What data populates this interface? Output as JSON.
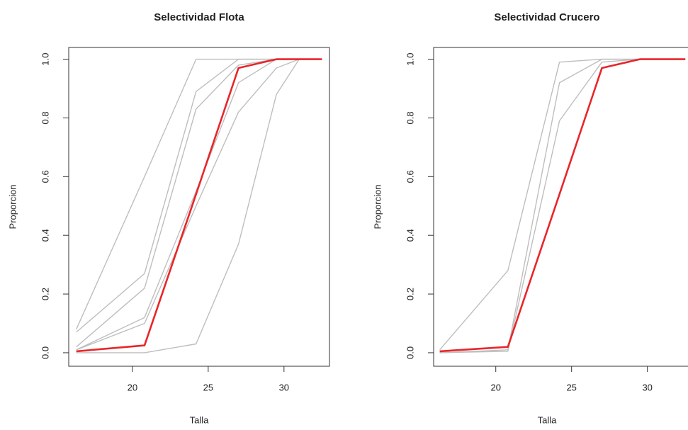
{
  "chart_data": [
    {
      "type": "line",
      "title": "Selectividad Flota",
      "x_label": "Talla",
      "y_label": "Proporcion",
      "x": [
        16.3,
        20.8,
        24.2,
        27,
        29.5,
        31,
        32.5
      ],
      "series": [
        {
          "color": "#bebebe",
          "values": [
            0.08,
            0.6,
            1.0,
            1.0,
            1.0,
            1.0,
            1.0
          ]
        },
        {
          "color": "#bebebe",
          "values": [
            0.07,
            0.27,
            0.89,
            1.0,
            1.0,
            1.0,
            1.0
          ]
        },
        {
          "color": "#bebebe",
          "values": [
            0.02,
            0.22,
            0.83,
            0.98,
            1.0,
            1.0,
            1.0
          ]
        },
        {
          "color": "#bebebe",
          "values": [
            0.01,
            0.12,
            0.55,
            0.92,
            1.0,
            1.0,
            1.0
          ]
        },
        {
          "color": "#bebebe",
          "values": [
            0.01,
            0.1,
            0.5,
            0.82,
            0.97,
            1.0,
            1.0
          ]
        },
        {
          "color": "#bebebe",
          "values": [
            0.0,
            0.0,
            0.03,
            0.37,
            0.88,
            1.0,
            1.0
          ]
        },
        {
          "color": "#e8262a",
          "values": [
            0.005,
            0.025,
            0.54,
            0.97,
            1.0,
            1.0,
            1.0
          ]
        }
      ],
      "xlim": [
        15.8,
        33.0
      ],
      "ylim": [
        -0.046,
        1.04
      ],
      "xticks": [
        20,
        25,
        30
      ],
      "yticks": [
        {
          "value": 0,
          "label": "0.0"
        },
        {
          "value": 0.2,
          "label": "0.2"
        },
        {
          "value": 0.4,
          "label": "0.4"
        },
        {
          "value": 0.6,
          "label": "0.6"
        },
        {
          "value": 0.8,
          "label": "0.8"
        },
        {
          "value": 1,
          "label": "1.0"
        }
      ],
      "grid": false
    },
    {
      "type": "line",
      "title": "Selectividad Crucero",
      "x_label": "Talla",
      "y_label": "Proporcion",
      "x": [
        16.3,
        20.8,
        24.2,
        27,
        29.5,
        31,
        32.5
      ],
      "series": [
        {
          "color": "#bebebe",
          "values": [
            0.01,
            0.28,
            0.99,
            1.0,
            1.0,
            1.0,
            1.0
          ]
        },
        {
          "color": "#bebebe",
          "values": [
            0.0,
            0.01,
            0.92,
            1.0,
            1.0,
            1.0,
            1.0
          ]
        },
        {
          "color": "#bebebe",
          "values": [
            0.0,
            0.005,
            0.79,
            0.99,
            1.0,
            1.0,
            1.0
          ]
        },
        {
          "color": "#e8262a",
          "values": [
            0.005,
            0.02,
            0.54,
            0.97,
            1.0,
            1.0,
            1.0
          ]
        }
      ],
      "xlim": [
        15.9,
        33.1
      ],
      "ylim": [
        -0.046,
        1.04
      ],
      "xticks": [
        20,
        25,
        30
      ],
      "yticks": [
        {
          "value": 0,
          "label": "0.0"
        },
        {
          "value": 0.2,
          "label": "0.2"
        },
        {
          "value": 0.4,
          "label": "0.4"
        },
        {
          "value": 0.6,
          "label": "0.6"
        },
        {
          "value": 0.8,
          "label": "0.8"
        },
        {
          "value": 1,
          "label": "1.0"
        }
      ],
      "grid": false
    }
  ]
}
